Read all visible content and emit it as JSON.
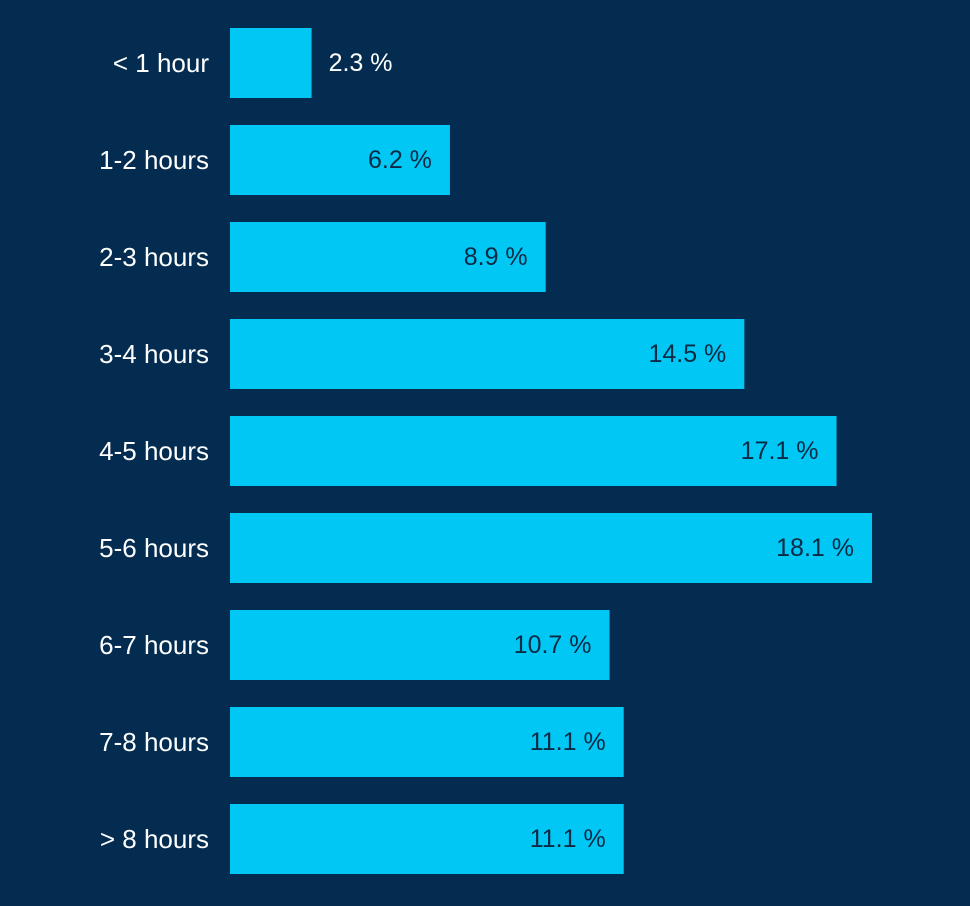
{
  "chart_data": {
    "type": "bar",
    "orientation": "horizontal",
    "categories": [
      "< 1 hour",
      "1-2 hours",
      "2-3 hours",
      "3-4 hours",
      "4-5 hours",
      "5-6 hours",
      "6-7 hours",
      "7-8 hours",
      "> 8 hours"
    ],
    "values": [
      2.3,
      6.2,
      8.9,
      14.5,
      17.1,
      18.1,
      10.7,
      11.1,
      11.1
    ],
    "value_labels": [
      "2.3 %",
      "6.2 %",
      "8.9 %",
      "14.5 %",
      "17.1 %",
      "18.1 %",
      "10.7 %",
      "11.1 %",
      "11.1 %"
    ],
    "title": "",
    "xlabel": "",
    "ylabel": "",
    "grid": false,
    "colors": {
      "background": "#032c50",
      "bar": "#00c7f4",
      "label": "#ffffff",
      "value_inside": "#0b2a45",
      "value_outside": "#ffffff"
    }
  }
}
